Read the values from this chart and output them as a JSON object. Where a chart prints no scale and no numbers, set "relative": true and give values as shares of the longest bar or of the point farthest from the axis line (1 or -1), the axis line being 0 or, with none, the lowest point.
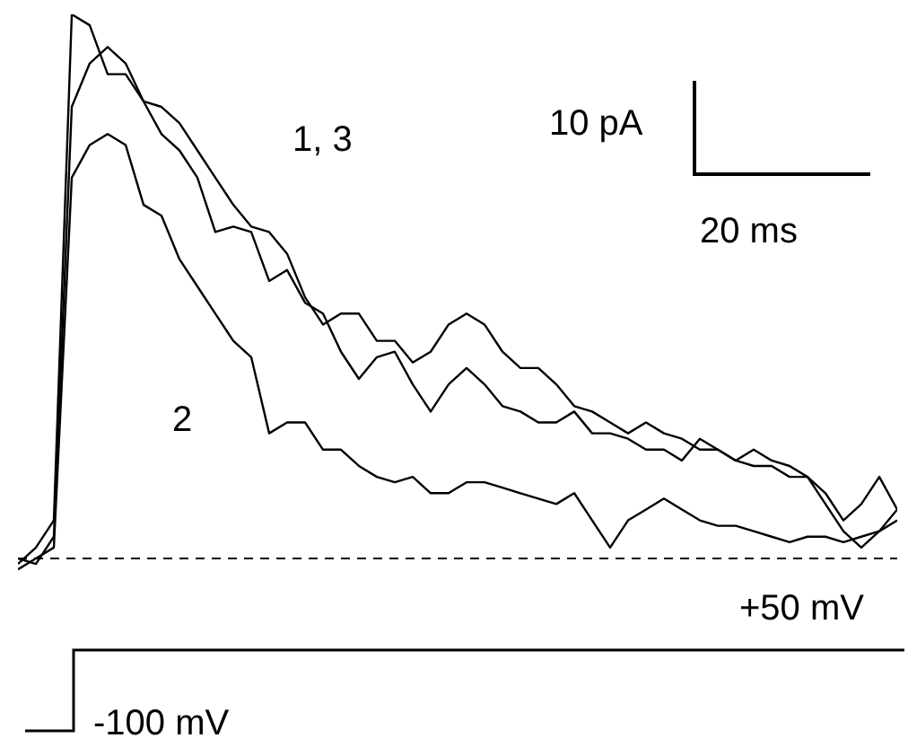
{
  "chart_data": {
    "type": "line",
    "relative": true,
    "marker": "none",
    "line_style": "solid",
    "categories": [
      null,
      null,
      null,
      null,
      null,
      null,
      null,
      null,
      null,
      null,
      null,
      null,
      null,
      null,
      null,
      null,
      null,
      null,
      null,
      null,
      null,
      null,
      null,
      null,
      null,
      null,
      null,
      null,
      null,
      null,
      null,
      null,
      null,
      null,
      null,
      null,
      null,
      null,
      null,
      null,
      null,
      null,
      null,
      null,
      null,
      null,
      null,
      null,
      null,
      null
    ],
    "series": [
      {
        "color": "#000000",
        "values": [
          -0.01,
          0.02,
          0.07,
          1.0,
          0.98,
          0.89,
          0.89,
          0.84,
          0.83,
          0.8,
          0.75,
          0.7,
          0.65,
          0.61,
          0.6,
          0.56,
          0.48,
          0.43,
          0.45,
          0.45,
          0.4,
          0.4,
          0.36,
          0.38,
          0.43,
          0.45,
          0.43,
          0.38,
          0.35,
          0.35,
          0.32,
          0.28,
          0.27,
          0.25,
          0.23,
          0.25,
          0.23,
          0.22,
          0.2,
          0.2,
          0.18,
          0.2,
          0.18,
          0.17,
          0.15,
          0.12,
          0.07,
          0.1,
          0.15,
          0.09
        ]
      },
      {
        "color": "#000000",
        "values": [
          -0.02,
          0.0,
          0.02,
          0.7,
          0.76,
          0.78,
          0.76,
          0.65,
          0.63,
          0.55,
          0.5,
          0.45,
          0.4,
          0.37,
          0.23,
          0.25,
          0.25,
          0.2,
          0.2,
          0.17,
          0.15,
          0.14,
          0.15,
          0.12,
          0.12,
          0.14,
          0.14,
          0.13,
          0.12,
          0.11,
          0.1,
          0.12,
          0.07,
          0.02,
          0.07,
          0.09,
          0.11,
          0.09,
          0.07,
          0.06,
          0.06,
          0.05,
          0.04,
          0.03,
          0.04,
          0.04,
          0.03,
          0.04,
          0.05,
          0.09
        ]
      },
      {
        "color": "#000000",
        "values": [
          0.0,
          -0.01,
          0.04,
          0.83,
          0.91,
          0.94,
          0.91,
          0.84,
          0.78,
          0.75,
          0.7,
          0.6,
          0.61,
          0.6,
          0.51,
          0.53,
          0.47,
          0.45,
          0.38,
          0.33,
          0.37,
          0.38,
          0.32,
          0.27,
          0.32,
          0.35,
          0.32,
          0.28,
          0.27,
          0.25,
          0.25,
          0.27,
          0.23,
          0.23,
          0.22,
          0.2,
          0.2,
          0.18,
          0.22,
          0.2,
          0.18,
          0.17,
          0.17,
          0.15,
          0.15,
          0.1,
          0.05,
          0.02,
          0.05,
          0.07
        ]
      }
    ],
    "ref_lines": [
      {
        "axis": "y",
        "value": 0,
        "line_style": "dashed",
        "color": "#000000"
      }
    ],
    "annotations": [
      "1, 3",
      "2",
      "10 pA",
      "20 ms",
      "+50 mV",
      "-100 mV"
    ]
  }
}
